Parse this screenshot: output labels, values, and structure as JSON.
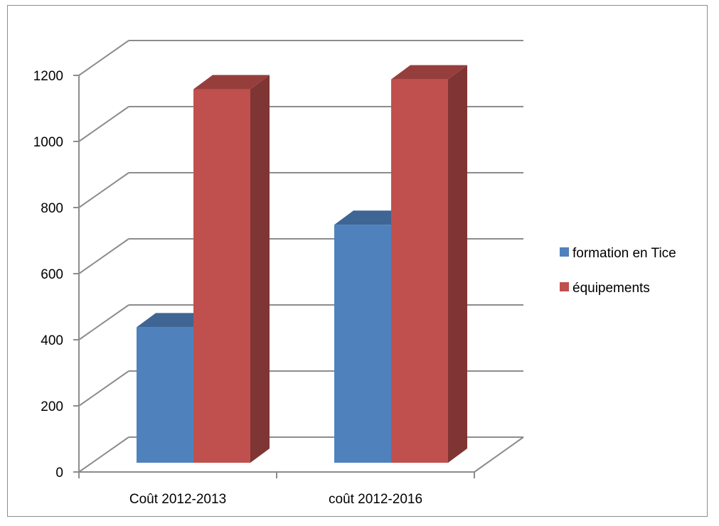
{
  "chart_data": {
    "type": "bar",
    "title": "",
    "xlabel": "",
    "ylabel": "",
    "ylim": [
      0,
      1200
    ],
    "yticks": [
      0,
      200,
      400,
      600,
      800,
      1000,
      1200
    ],
    "grid": true,
    "legend_position": "right",
    "categories": [
      "Coût 2012-2013",
      "coût 2012-2016"
    ],
    "series": [
      {
        "name": "formation en Tice",
        "values": [
          410,
          720
        ],
        "color": "#4f81bd"
      },
      {
        "name": "équipements",
        "values": [
          1130,
          1160
        ],
        "color": "#c0504d"
      }
    ]
  }
}
